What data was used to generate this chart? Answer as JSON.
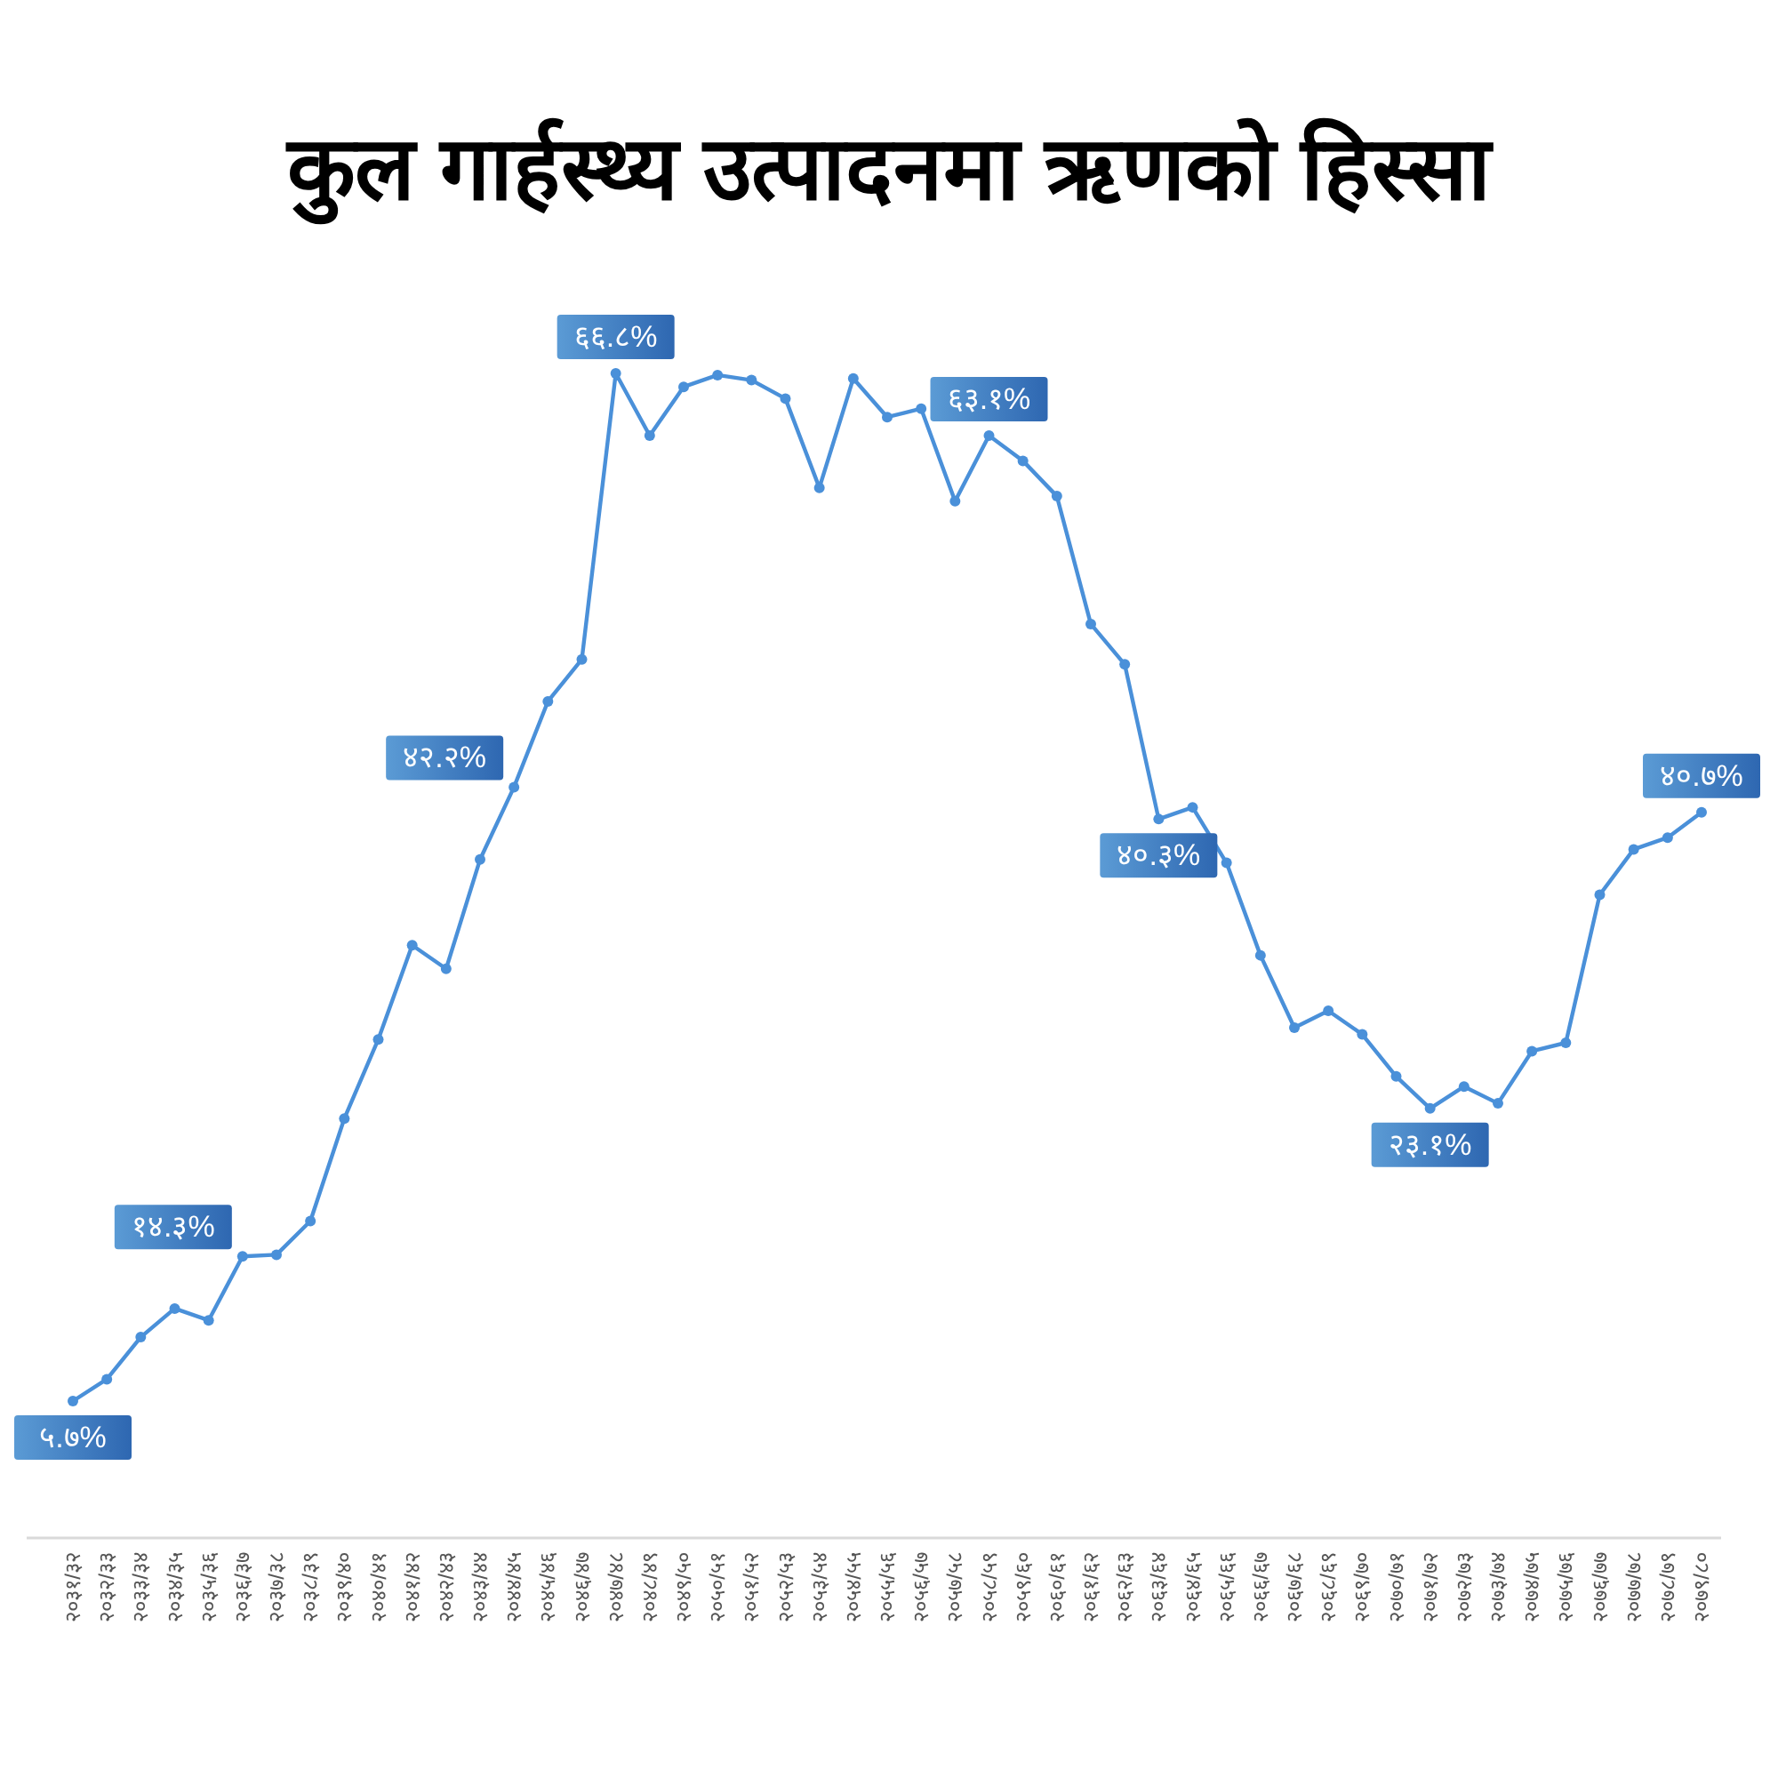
{
  "chart_data": {
    "type": "line",
    "title": "कुल गार्हस्थ्य उत्पादनमा ऋणको हिस्सा",
    "categories": [
      "२०३१/३२",
      "२०३२/३३",
      "२०३३/३४",
      "२०३४/३५",
      "२०३५/३६",
      "२०३६/३७",
      "२०३७/३८",
      "२०३८/३९",
      "२०३९/४०",
      "२०४०/४१",
      "२०४१/४२",
      "२०४२/४३",
      "२०४३/४४",
      "२०४४/४५",
      "२०४५/४६",
      "२०४६/४७",
      "२०४७/४८",
      "२०४८/४९",
      "२०४९/५०",
      "२०५०/५१",
      "२०५१/५२",
      "२०५२/५३",
      "२०५३/५४",
      "२०५४/५५",
      "२०५५/५६",
      "२०५६/५७",
      "२०५७/५८",
      "२०५८/५९",
      "२०५९/६०",
      "२०६०/६१",
      "२०६१/६२",
      "२०६२/६३",
      "२०६३/६४",
      "२०६४/६५",
      "२०६५/६६",
      "२०६६/६७",
      "२०६७/६८",
      "२०६८/६९",
      "२०६९/७०",
      "२०७०/७१",
      "२०७१/७२",
      "२०७२/७३",
      "२०७३/७४",
      "२०७४/७५",
      "२०७५/७६",
      "२०७६/७७",
      "२०७७/७८",
      "२०७८/७९",
      "२०७९/८०"
    ],
    "series": [
      {
        "color": "#4a90d9",
        "values": [
          5.7,
          7.0,
          9.5,
          11.2,
          10.5,
          14.3,
          14.4,
          16.4,
          22.5,
          27.2,
          32.8,
          31.4,
          37.9,
          42.2,
          47.3,
          49.8,
          66.8,
          63.1,
          66.0,
          66.7,
          66.4,
          65.3,
          60.0,
          66.5,
          64.2,
          64.7,
          59.2,
          63.1,
          61.6,
          59.5,
          51.9,
          49.5,
          40.3,
          41.0,
          37.7,
          32.2,
          27.9,
          28.9,
          27.5,
          25.0,
          23.1,
          24.4,
          23.4,
          26.5,
          27.0,
          35.8,
          38.5,
          39.2,
          40.7
        ],
        "value_labels": [
          "५.७%",
          null,
          null,
          null,
          null,
          "१४.३%",
          null,
          null,
          null,
          null,
          null,
          null,
          null,
          "४२.२%",
          null,
          null,
          "६६.८%",
          null,
          null,
          null,
          null,
          null,
          null,
          null,
          null,
          null,
          null,
          "६३.१%",
          null,
          null,
          null,
          null,
          "४०.३%",
          null,
          null,
          null,
          null,
          null,
          null,
          null,
          "२३.१%",
          null,
          null,
          null,
          null,
          null,
          null,
          null,
          "४०.७%"
        ]
      }
    ],
    "marker": "circle",
    "line_style": "solid"
  }
}
